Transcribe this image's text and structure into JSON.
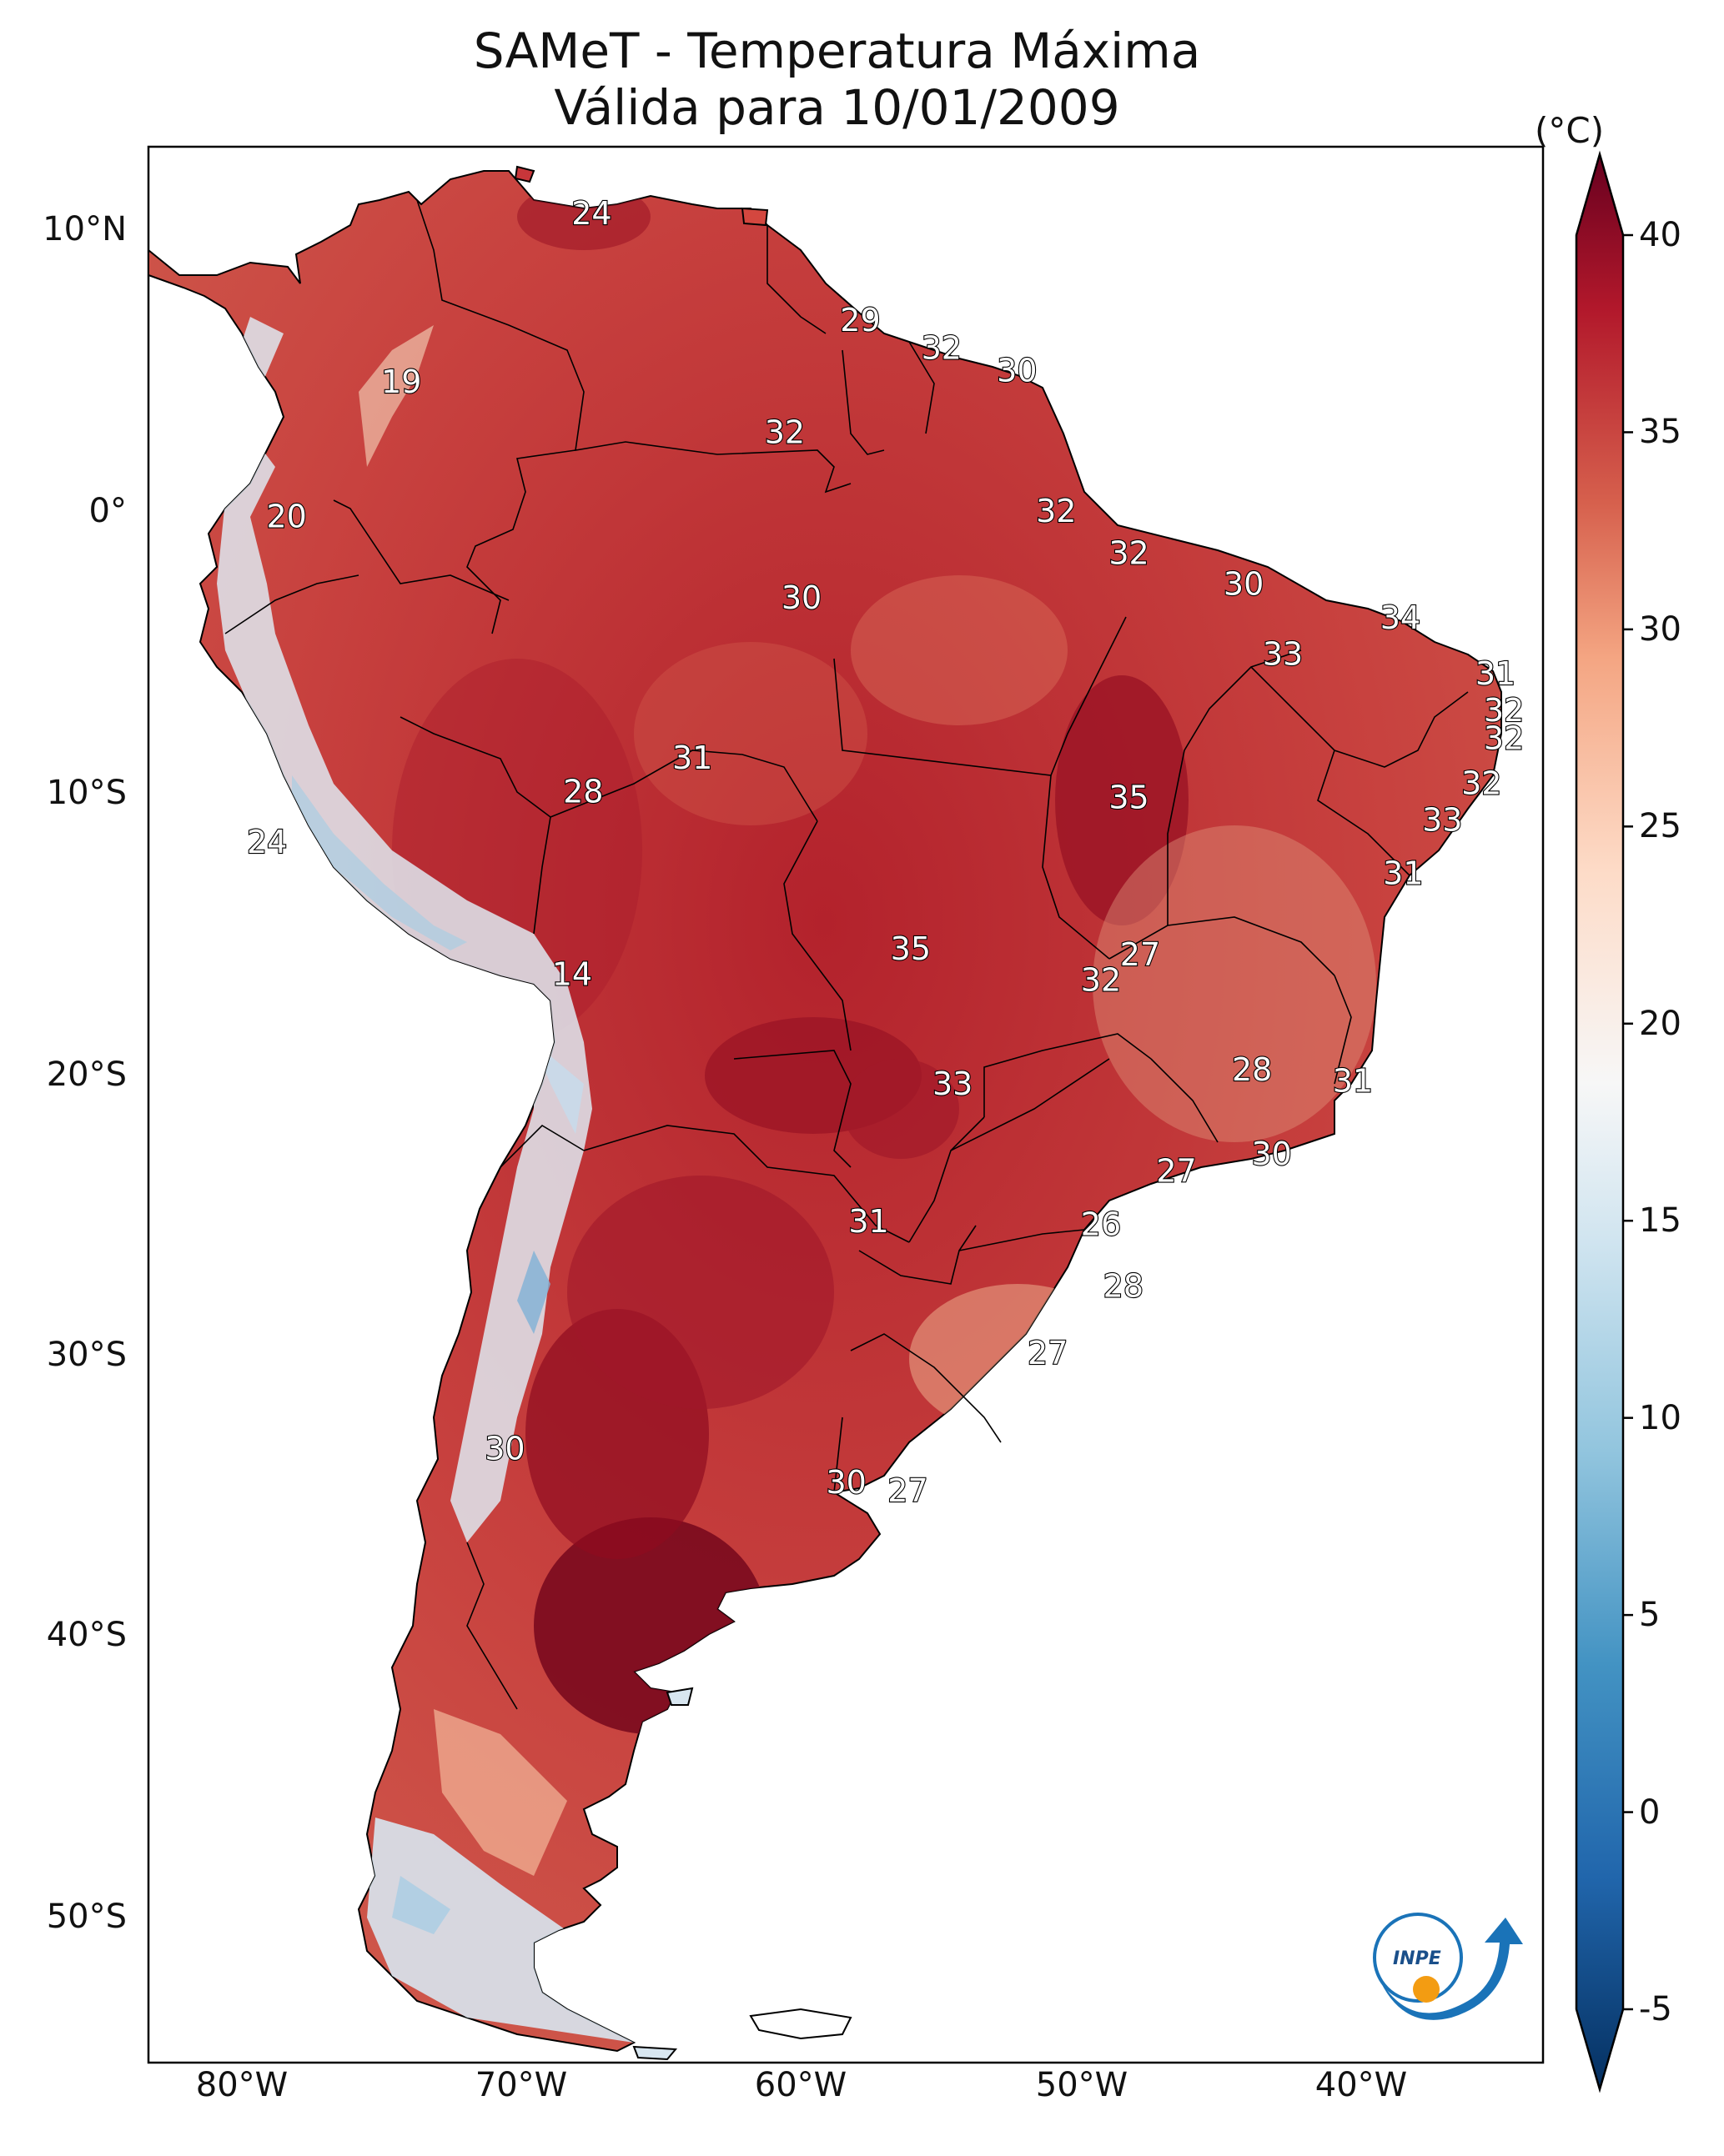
{
  "title": "SAMeT - Temperatura Máxima",
  "subtitle": "Válida para 10/01/2009",
  "colorbar": {
    "unit": "(°C)",
    "ticks": [
      "40",
      "35",
      "30",
      "25",
      "20",
      "15",
      "10",
      "5",
      "0",
      "-5"
    ],
    "range": [
      -5,
      40
    ],
    "colormap": "RdBu_r",
    "extend": "both"
  },
  "axes": {
    "lat_labels": [
      "10°N",
      "0°",
      "10°S",
      "20°S",
      "30°S",
      "40°S",
      "50°S"
    ],
    "lon_labels": [
      "80°W",
      "70°W",
      "60°W",
      "50°W",
      "40°W"
    ]
  },
  "logo": {
    "text": "INPE"
  },
  "colors": {
    "hot": "#8e0b1f",
    "warm": "#c8363a",
    "mild": "#f3b89a",
    "neutral": "#f7f4f2",
    "cold": "#7fb2d6",
    "ocean": "#ffffff"
  },
  "station_labels": [
    {
      "value": "24",
      "lon": -67.5,
      "lat": 10.6
    },
    {
      "value": "19",
      "lon": -74.3,
      "lat": 4.6
    },
    {
      "value": "20",
      "lon": -78.4,
      "lat": -0.2
    },
    {
      "value": "24",
      "lon": -79.1,
      "lat": -11.8
    },
    {
      "value": "14",
      "lon": -68.2,
      "lat": -16.5
    },
    {
      "value": "30",
      "lon": -70.6,
      "lat": -33.4
    },
    {
      "value": "29",
      "lon": -57.9,
      "lat": 6.8
    },
    {
      "value": "32",
      "lon": -55.0,
      "lat": 5.8
    },
    {
      "value": "30",
      "lon": -52.3,
      "lat": 5.0
    },
    {
      "value": "32",
      "lon": -60.6,
      "lat": 2.8
    },
    {
      "value": "30",
      "lon": -60.0,
      "lat": -3.1
    },
    {
      "value": "32",
      "lon": -50.9,
      "lat": 0.0
    },
    {
      "value": "32",
      "lon": -48.3,
      "lat": -1.5
    },
    {
      "value": "30",
      "lon": -44.2,
      "lat": -2.6
    },
    {
      "value": "34",
      "lon": -38.6,
      "lat": -3.8
    },
    {
      "value": "33",
      "lon": -42.8,
      "lat": -5.1
    },
    {
      "value": "31",
      "lon": -35.2,
      "lat": -5.8
    },
    {
      "value": "32",
      "lon": -34.9,
      "lat": -7.1
    },
    {
      "value": "32",
      "lon": -34.9,
      "lat": -8.1
    },
    {
      "value": "32",
      "lon": -35.7,
      "lat": -9.7
    },
    {
      "value": "33",
      "lon": -37.1,
      "lat": -11.0
    },
    {
      "value": "31",
      "lon": -38.5,
      "lat": -12.9
    },
    {
      "value": "31",
      "lon": -63.9,
      "lat": -8.8
    },
    {
      "value": "28",
      "lon": -67.8,
      "lat": -10.0
    },
    {
      "value": "35",
      "lon": -48.3,
      "lat": -10.2
    },
    {
      "value": "35",
      "lon": -56.1,
      "lat": -15.6
    },
    {
      "value": "27",
      "lon": -47.9,
      "lat": -15.8
    },
    {
      "value": "32",
      "lon": -49.3,
      "lat": -16.7
    },
    {
      "value": "33",
      "lon": -54.6,
      "lat": -20.4
    },
    {
      "value": "28",
      "lon": -43.9,
      "lat": -19.9
    },
    {
      "value": "31",
      "lon": -40.3,
      "lat": -20.3
    },
    {
      "value": "30",
      "lon": -43.2,
      "lat": -22.9
    },
    {
      "value": "27",
      "lon": -46.6,
      "lat": -23.5
    },
    {
      "value": "31",
      "lon": -57.6,
      "lat": -25.3
    },
    {
      "value": "26",
      "lon": -49.3,
      "lat": -25.4
    },
    {
      "value": "28",
      "lon": -48.5,
      "lat": -27.6
    },
    {
      "value": "27",
      "lon": -51.2,
      "lat": -30.0
    },
    {
      "value": "30",
      "lon": -58.4,
      "lat": -34.6
    },
    {
      "value": "27",
      "lon": -56.2,
      "lat": -34.9
    }
  ]
}
